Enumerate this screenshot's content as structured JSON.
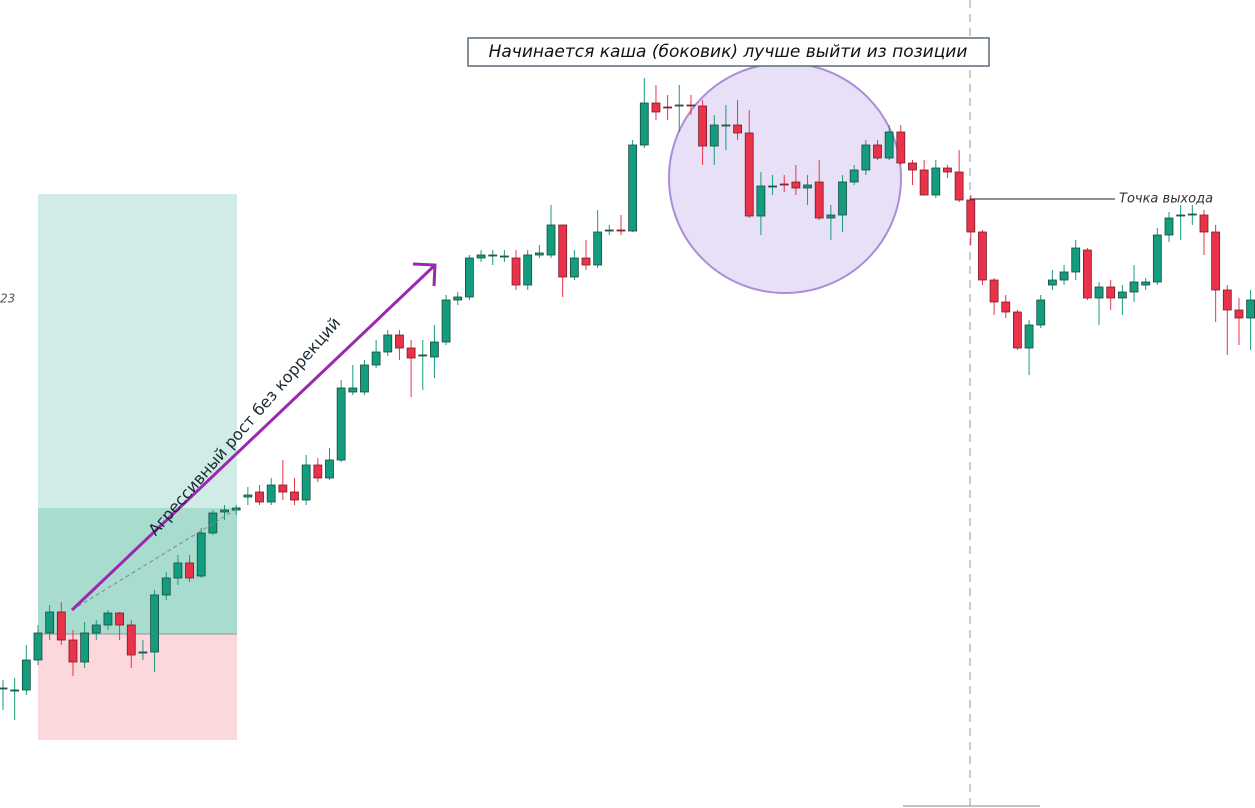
{
  "chart_data": {
    "type": "candlestick",
    "title": "Начинается каша (боковик) лучше выйти из позиции",
    "trend_annotation": "Агрессивный рост без коррекций",
    "exit_label": "Точка выхода",
    "side_label": "23",
    "ylim": [
      0,
      808
    ],
    "up_color": "#149c7e",
    "down_color": "#e8334a",
    "open": [
      120,
      118,
      118,
      148,
      175,
      196,
      168,
      146,
      175,
      183,
      195,
      183,
      156,
      156,
      213,
      230,
      245,
      232,
      275,
      296,
      298,
      311,
      316,
      306,
      323,
      316,
      308,
      343,
      330,
      348,
      416,
      416,
      443,
      456,
      473,
      460,
      452,
      451,
      466,
      508,
      511,
      550,
      553,
      552,
      550,
      523,
      553,
      553,
      583,
      531,
      550,
      543,
      578,
      578,
      577,
      663,
      705,
      701,
      702,
      703,
      702,
      662,
      683,
      683,
      675,
      592,
      622,
      624,
      626,
      620,
      626,
      590,
      593,
      626,
      638,
      663,
      650,
      676,
      645,
      638,
      613,
      640,
      636,
      608,
      576,
      528,
      506,
      496,
      460,
      483,
      523,
      528,
      536,
      558,
      510,
      521,
      510,
      516,
      523,
      526,
      573,
      592,
      593,
      593,
      576,
      518,
      498,
      490
    ],
    "high": [
      128,
      130,
      163,
      183,
      203,
      206,
      178,
      186,
      188,
      198,
      196,
      188,
      168,
      218,
      236,
      253,
      253,
      280,
      298,
      303,
      303,
      321,
      323,
      330,
      348,
      330,
      353,
      350,
      360,
      428,
      443,
      448,
      468,
      478,
      478,
      468,
      468,
      483,
      513,
      516,
      553,
      558,
      558,
      558,
      558,
      558,
      563,
      603,
      583,
      558,
      568,
      598,
      583,
      593,
      668,
      730,
      723,
      713,
      723,
      713,
      708,
      693,
      703,
      708,
      698,
      636,
      633,
      633,
      643,
      633,
      648,
      603,
      633,
      643,
      668,
      668,
      683,
      683,
      648,
      648,
      648,
      643,
      658,
      613,
      578,
      530,
      513,
      498,
      488,
      513,
      538,
      543,
      568,
      560,
      526,
      528,
      523,
      543,
      530,
      580,
      596,
      603,
      603,
      598,
      583,
      523,
      510,
      518
    ],
    "low": [
      98,
      88,
      113,
      143,
      168,
      163,
      132,
      140,
      168,
      178,
      168,
      140,
      148,
      136,
      208,
      223,
      226,
      230,
      273,
      288,
      293,
      303,
      303,
      303,
      308,
      303,
      303,
      326,
      328,
      346,
      413,
      413,
      440,
      452,
      448,
      411,
      418,
      430,
      463,
      503,
      508,
      546,
      543,
      546,
      518,
      518,
      550,
      550,
      511,
      528,
      538,
      540,
      573,
      573,
      576,
      660,
      688,
      688,
      676,
      693,
      643,
      643,
      658,
      668,
      590,
      573,
      613,
      616,
      613,
      603,
      588,
      568,
      576,
      623,
      633,
      648,
      648,
      643,
      623,
      613,
      610,
      630,
      606,
      563,
      523,
      493,
      490,
      458,
      433,
      480,
      518,
      523,
      528,
      508,
      483,
      498,
      493,
      506,
      518,
      523,
      566,
      568,
      583,
      553,
      486,
      453,
      463,
      458
    ],
    "close": [
      120,
      118,
      148,
      175,
      196,
      168,
      146,
      175,
      183,
      195,
      183,
      153,
      156,
      213,
      230,
      245,
      230,
      275,
      295,
      298,
      300,
      313,
      306,
      323,
      316,
      308,
      343,
      330,
      348,
      420,
      420,
      443,
      456,
      473,
      460,
      450,
      453,
      466,
      508,
      511,
      550,
      553,
      553,
      552,
      523,
      553,
      555,
      583,
      531,
      550,
      543,
      576,
      578,
      577,
      663,
      705,
      696,
      700,
      703,
      702,
      662,
      683,
      683,
      675,
      592,
      622,
      622,
      623,
      620,
      623,
      590,
      593,
      626,
      638,
      663,
      650,
      676,
      645,
      638,
      613,
      640,
      636,
      608,
      576,
      528,
      506,
      496,
      460,
      483,
      508,
      528,
      536,
      560,
      510,
      521,
      510,
      516,
      526,
      526,
      573,
      590,
      593,
      594,
      576,
      518,
      498,
      490,
      508
    ]
  }
}
